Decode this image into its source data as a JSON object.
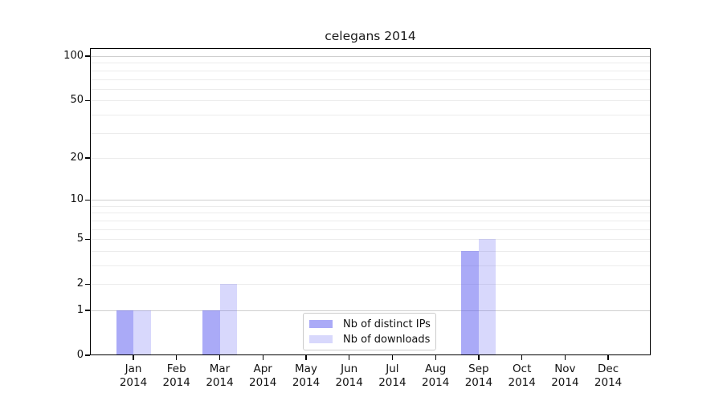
{
  "chart_data": {
    "type": "bar",
    "title": "celegans 2014",
    "categories": [
      "Jan 2014",
      "Feb 2014",
      "Mar 2014",
      "Apr 2014",
      "May 2014",
      "Jun 2014",
      "Jul 2014",
      "Aug 2014",
      "Sep 2014",
      "Oct 2014",
      "Nov 2014",
      "Dec 2014"
    ],
    "series": [
      {
        "name": "Nb of distinct IPs",
        "color": "rgba(85,85,240,0.5)",
        "values": [
          1,
          0,
          1,
          0,
          0,
          0,
          0,
          0,
          4,
          0,
          0,
          0
        ]
      },
      {
        "name": "Nb of downloads",
        "color": "rgba(85,85,240,0.23)",
        "values": [
          1,
          0,
          2,
          0,
          0,
          0,
          0,
          0,
          5,
          0,
          0,
          0
        ]
      }
    ],
    "xlabel": "",
    "ylabel": "",
    "y_scale": "log10(1+v)",
    "ylim": [
      0,
      110
    ],
    "y_ticks": [
      0,
      1,
      2,
      5,
      10,
      20,
      50,
      100
    ],
    "grid": true,
    "minor_grid_values": [
      2,
      3,
      4,
      5,
      6,
      7,
      8,
      9,
      20,
      30,
      40,
      50,
      60,
      70,
      80,
      90
    ],
    "major_grid_values": [
      1,
      10,
      100
    ],
    "legend": {
      "position": "lower-center",
      "entries": [
        "Nb of distinct IPs",
        "Nb of downloads"
      ]
    },
    "colors": {
      "axis": "#000000",
      "minor_grid": "#ececec",
      "major_grid": "#cfcfcf",
      "text": "#1a1a1a",
      "legend_border": "#cccccc",
      "bar_distinct_ips": "#aaaaf8",
      "bar_downloads": "#d8d8f8"
    }
  }
}
